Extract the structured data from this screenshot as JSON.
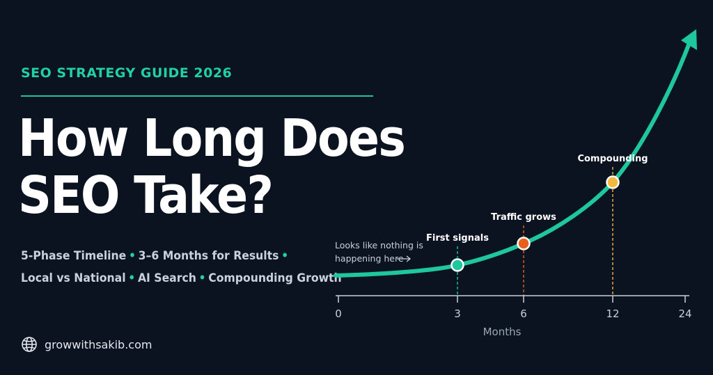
{
  "header": {
    "eyebrow": "SEO STRATEGY GUIDE 2026",
    "title_line1": "How Long Does",
    "title_line2": "SEO Take?"
  },
  "tags": {
    "line1": [
      "5-Phase Timeline",
      "3–6 Months for Results"
    ],
    "line2": [
      "Local vs National",
      "AI Search",
      "Compounding Growth"
    ]
  },
  "footer": {
    "site": "growwithsakib.com",
    "icon": "globe-icon"
  },
  "chart_data": {
    "type": "line",
    "xlabel": "Months",
    "ticks": [
      {
        "value": "0",
        "rank": 0
      },
      {
        "value": "3",
        "rank": 1
      },
      {
        "value": "6",
        "rank": 2
      },
      {
        "value": "12",
        "rank": 3
      },
      {
        "value": "24",
        "rank": 4
      }
    ],
    "markers": [
      {
        "label": "First signals",
        "x": "3",
        "color": "#1fc79e"
      },
      {
        "label": "Traffic grows",
        "x": "6",
        "color": "#e8611a"
      },
      {
        "label": "Compounding",
        "x": "12",
        "color": "#f5b93b"
      }
    ],
    "annotation": "Looks like nothing is happening here",
    "line_color": "#1fc79e",
    "axis_color": "#c8d1dc"
  }
}
